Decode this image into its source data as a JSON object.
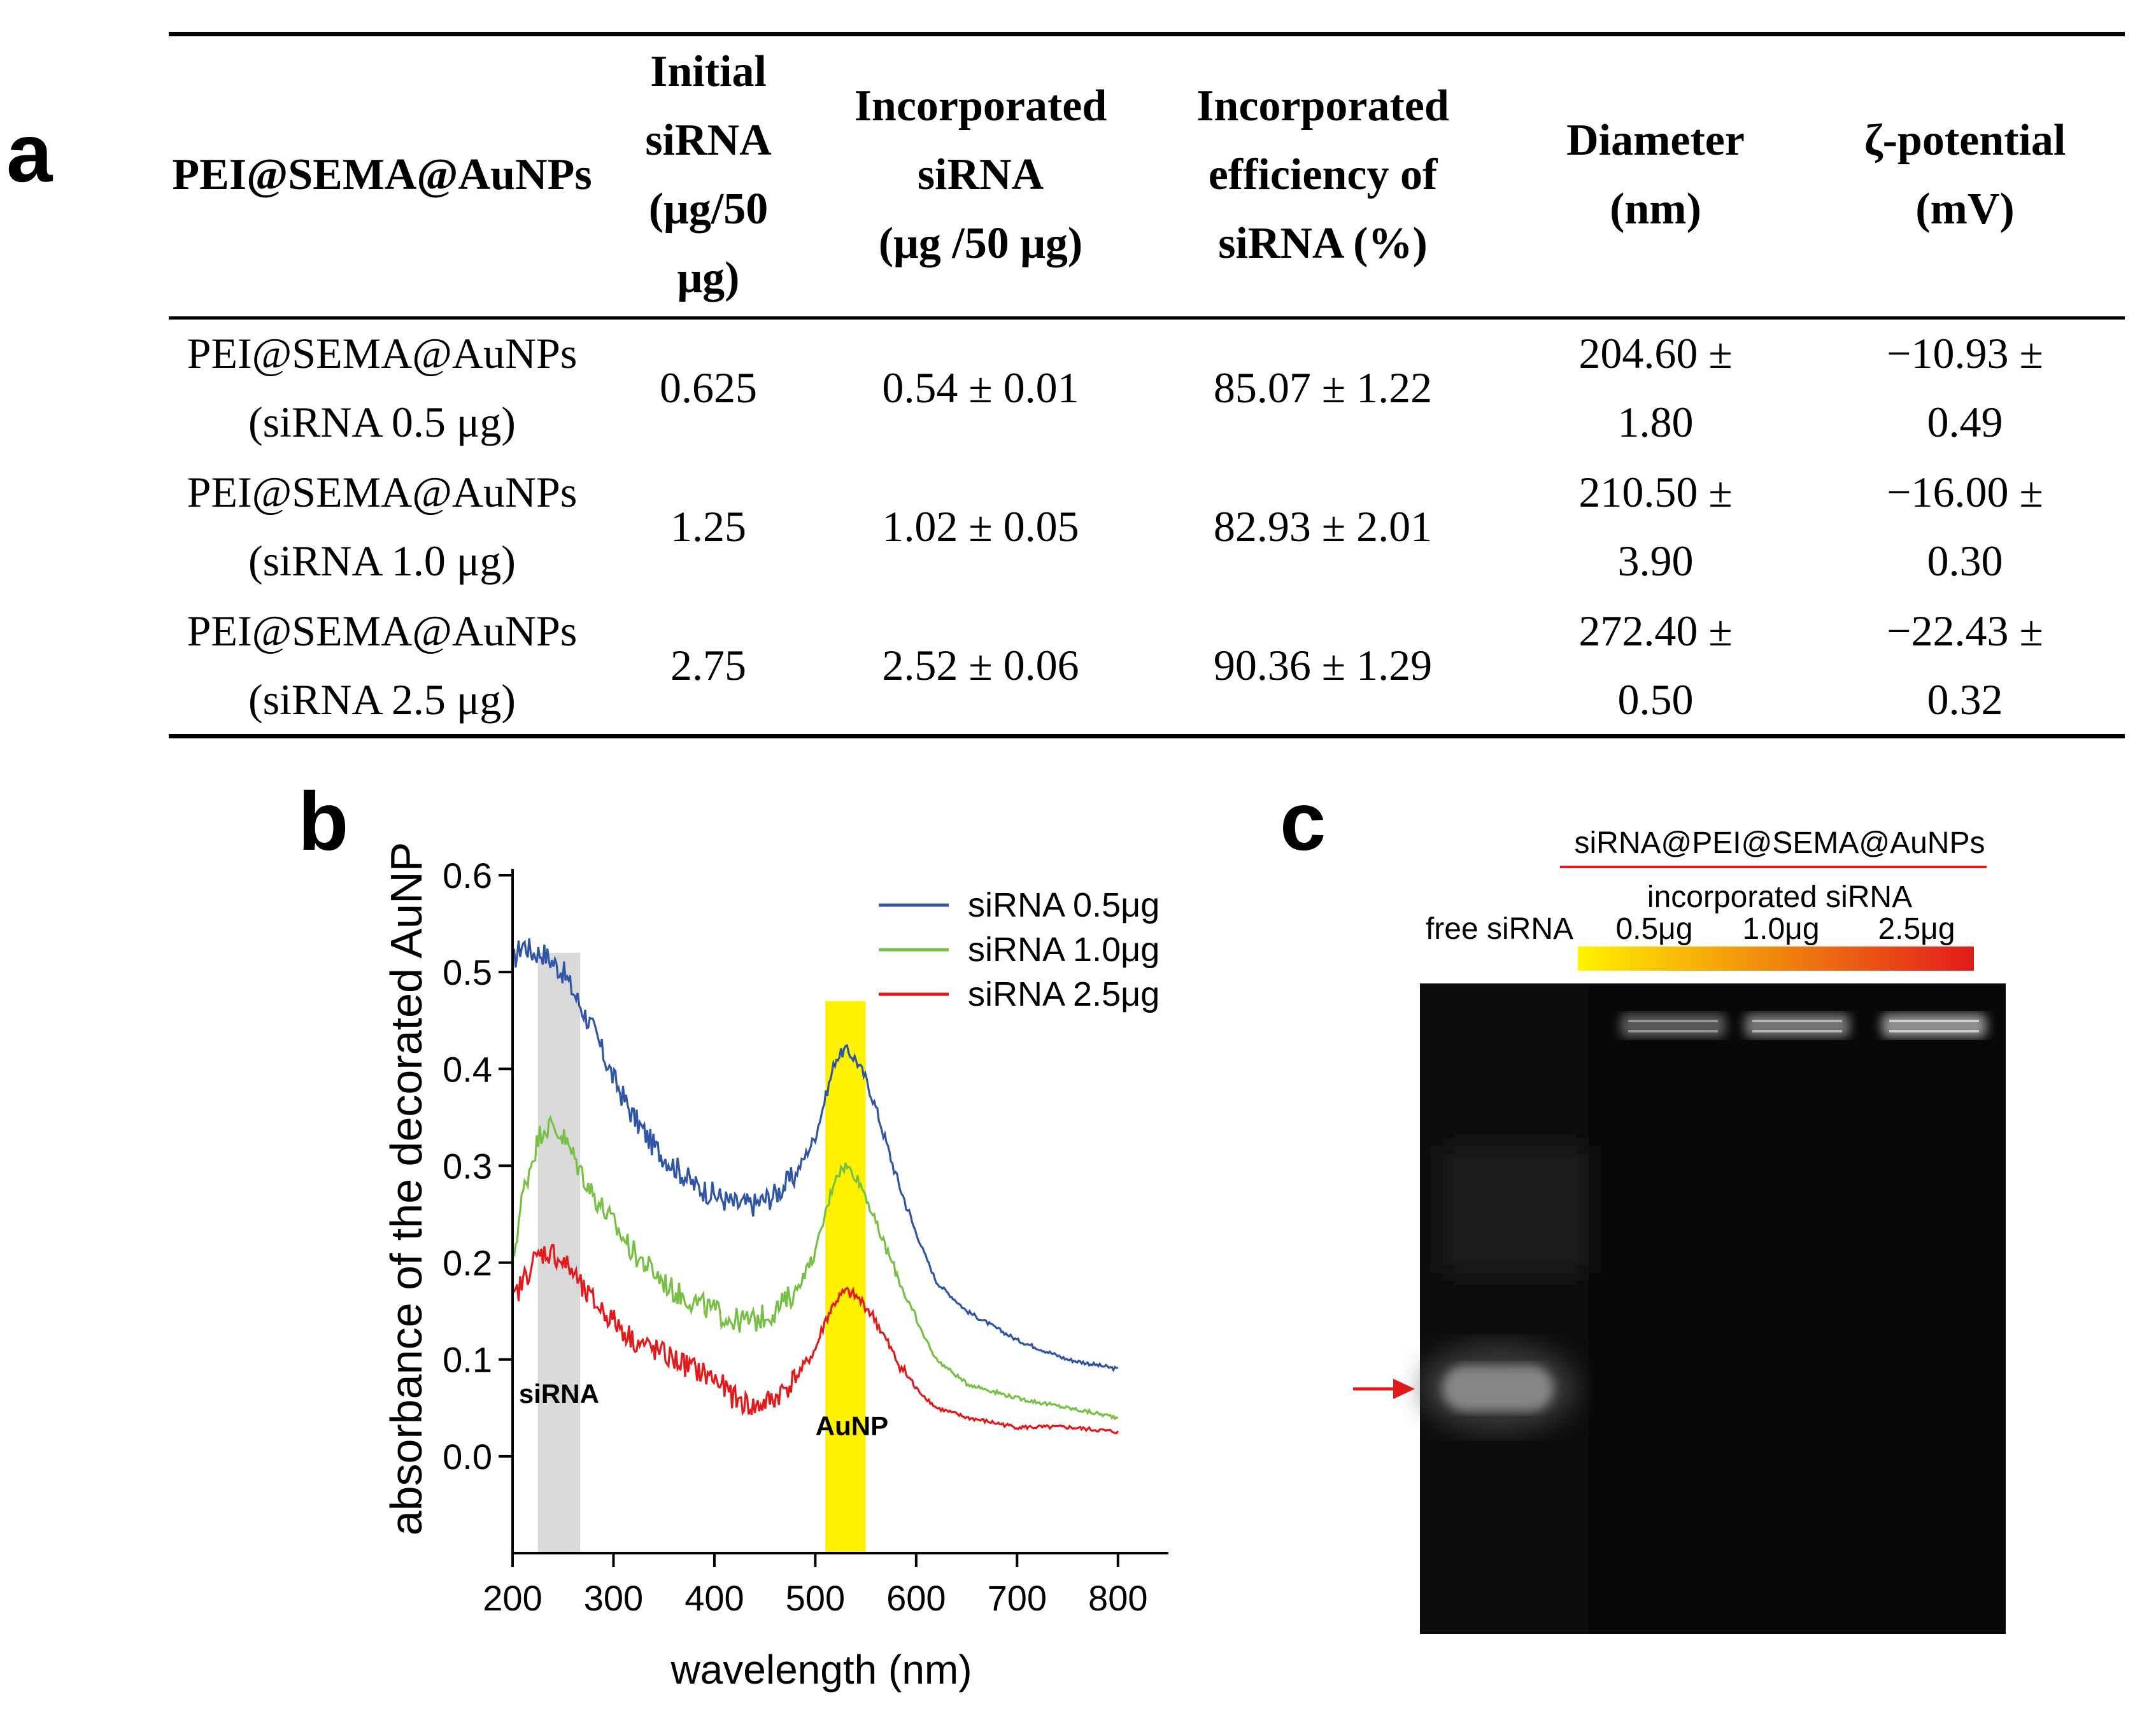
{
  "panels": {
    "a": "a",
    "b": "b",
    "c": "c"
  },
  "table": {
    "columns": [
      [
        "PEI@SEMA@AuNPs"
      ],
      [
        "Initial",
        "siRNA",
        "(μg/50",
        "μg)"
      ],
      [
        "Incorporated",
        "siRNA",
        "(μg /50 μg)"
      ],
      [
        "Incorporated",
        "efficiency of",
        "siRNA (%)"
      ],
      [
        "Diameter",
        "(nm)"
      ],
      [
        "ζ-potential",
        "(mV)"
      ]
    ],
    "rows": [
      {
        "cells": [
          [
            "PEI@SEMA@AuNPs",
            "(siRNA 0.5 μg)"
          ],
          [
            "0.625"
          ],
          [
            "0.54 ± 0.01"
          ],
          [
            "85.07 ± 1.22"
          ],
          [
            "204.60 ±",
            "1.80"
          ],
          [
            "−10.93 ±",
            "0.49"
          ]
        ]
      },
      {
        "cells": [
          [
            "PEI@SEMA@AuNPs",
            "(siRNA 1.0 μg)"
          ],
          [
            "1.25"
          ],
          [
            "1.02 ± 0.05"
          ],
          [
            "82.93 ± 2.01"
          ],
          [
            "210.50 ±",
            "3.90"
          ],
          [
            "−16.00 ±",
            "0.30"
          ]
        ]
      },
      {
        "cells": [
          [
            "PEI@SEMA@AuNPs",
            "(siRNA 2.5 μg)"
          ],
          [
            "2.75"
          ],
          [
            "2.52 ± 0.06"
          ],
          [
            "90.36 ± 1.29"
          ],
          [
            "272.40 ±",
            "0.50"
          ],
          [
            "−22.43 ±",
            "0.32"
          ]
        ]
      }
    ]
  },
  "chart_data": [
    {
      "type": "line",
      "title": "",
      "xlabel": "wavelength (nm)",
      "ylabel": "absorbance of the decorated AuNP",
      "xlim": [
        200,
        850
      ],
      "ylim": [
        -0.1,
        0.6
      ],
      "xticks": [
        200,
        300,
        400,
        500,
        600,
        700,
        800
      ],
      "yticks": [
        0.0,
        0.1,
        0.2,
        0.3,
        0.4,
        0.5,
        0.6
      ],
      "xtick_labels": [
        "200",
        "300",
        "400",
        "500",
        "600",
        "700",
        "800"
      ],
      "ytick_labels": [
        "0.0",
        "0.1",
        "0.2",
        "0.3",
        "0.4",
        "0.5",
        "0.6"
      ],
      "legend_position": "top-right",
      "highlight_bands": [
        {
          "label": "siRNA",
          "x_range": [
            225,
            267
          ],
          "color": "#d9d9d9"
        },
        {
          "label": "AuNP",
          "x_range": [
            510,
            550
          ],
          "color": "#fff200"
        }
      ],
      "series": [
        {
          "name": "siRNA 0.5μg",
          "color": "#2f55a4",
          "x": [
            200,
            210,
            220,
            230,
            240,
            250,
            260,
            270,
            280,
            300,
            320,
            340,
            360,
            380,
            400,
            420,
            440,
            460,
            480,
            500,
            510,
            520,
            530,
            540,
            550,
            560,
            580,
            600,
            620,
            650,
            700,
            750,
            800
          ],
          "y": [
            0.51,
            0.53,
            0.52,
            0.52,
            0.51,
            0.5,
            0.48,
            0.46,
            0.44,
            0.39,
            0.35,
            0.32,
            0.3,
            0.28,
            0.27,
            0.26,
            0.26,
            0.27,
            0.29,
            0.33,
            0.37,
            0.41,
            0.42,
            0.41,
            0.39,
            0.36,
            0.29,
            0.23,
            0.18,
            0.15,
            0.12,
            0.1,
            0.09
          ]
        },
        {
          "name": "siRNA 1.0μg",
          "color": "#76c043",
          "x": [
            200,
            210,
            220,
            230,
            240,
            250,
            260,
            270,
            280,
            300,
            320,
            340,
            360,
            380,
            400,
            420,
            440,
            460,
            480,
            500,
            510,
            520,
            530,
            540,
            550,
            560,
            580,
            600,
            620,
            650,
            700,
            750,
            800
          ],
          "y": [
            0.2,
            0.27,
            0.31,
            0.34,
            0.34,
            0.33,
            0.31,
            0.29,
            0.27,
            0.24,
            0.21,
            0.19,
            0.17,
            0.16,
            0.15,
            0.14,
            0.14,
            0.15,
            0.17,
            0.21,
            0.25,
            0.29,
            0.3,
            0.29,
            0.27,
            0.24,
            0.19,
            0.14,
            0.1,
            0.075,
            0.06,
            0.05,
            0.04
          ]
        },
        {
          "name": "siRNA 2.5μg",
          "color": "#e31a1c",
          "x": [
            200,
            210,
            220,
            230,
            240,
            250,
            260,
            270,
            280,
            300,
            320,
            340,
            360,
            380,
            400,
            420,
            440,
            460,
            480,
            500,
            510,
            520,
            530,
            540,
            550,
            560,
            580,
            600,
            620,
            650,
            700,
            750,
            800
          ],
          "y": [
            0.16,
            0.18,
            0.2,
            0.21,
            0.21,
            0.2,
            0.19,
            0.17,
            0.16,
            0.14,
            0.12,
            0.11,
            0.1,
            0.09,
            0.08,
            0.06,
            0.05,
            0.06,
            0.08,
            0.11,
            0.14,
            0.16,
            0.17,
            0.165,
            0.155,
            0.14,
            0.1,
            0.07,
            0.05,
            0.04,
            0.03,
            0.03,
            0.025
          ]
        }
      ]
    },
    {
      "type": "other",
      "title": "siRNA@PEI@SEMA@AuNPs",
      "subtitle": "incorporated siRNA",
      "lanes": [
        "free siRNA",
        "0.5μg",
        "1.0μg",
        "2.5μg"
      ],
      "gradient_colors": [
        "#fff200",
        "#e31a1c"
      ],
      "marker_color": "#e31a1c",
      "band_intensity": {
        "free siRNA": 0.55,
        "0.5μg": 0.45,
        "1.0μg": 0.6,
        "2.5μg": 0.75
      }
    }
  ]
}
